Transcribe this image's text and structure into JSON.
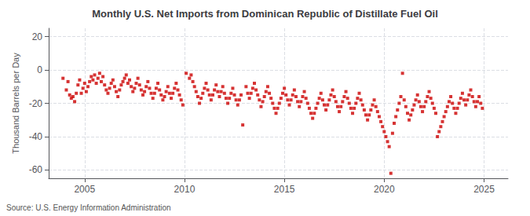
{
  "chart_data": {
    "type": "scatter",
    "title": "Monthly U.S. Net Imports from Dominican Republic of Distillate Fuel Oil",
    "ylabel": "Thousand Barrels per Day",
    "annotation": "Source: U.S. Energy Information Administration",
    "color": "#CC0000",
    "marker": "square",
    "grid": true,
    "xlim": [
      2003.2,
      2026.2
    ],
    "ylim": [
      -65,
      25
    ],
    "xticks": [
      2005,
      2010,
      2015,
      2020,
      2025
    ],
    "yticks": [
      -60,
      -40,
      -20,
      0,
      20
    ],
    "x": [
      2003.917,
      2004.083,
      2004.167,
      2004.25,
      2004.333,
      2004.417,
      2004.5,
      2004.583,
      2004.667,
      2004.75,
      2004.833,
      2004.917,
      2005.0,
      2005.083,
      2005.167,
      2005.25,
      2005.333,
      2005.417,
      2005.5,
      2005.583,
      2005.667,
      2005.75,
      2005.833,
      2005.917,
      2006.0,
      2006.083,
      2006.167,
      2006.25,
      2006.333,
      2006.417,
      2006.5,
      2006.583,
      2006.667,
      2006.75,
      2006.833,
      2006.917,
      2007.0,
      2007.083,
      2007.167,
      2007.25,
      2007.333,
      2007.417,
      2007.5,
      2007.583,
      2007.667,
      2007.75,
      2007.833,
      2007.917,
      2008.0,
      2008.083,
      2008.167,
      2008.25,
      2008.333,
      2008.417,
      2008.5,
      2008.583,
      2008.667,
      2008.75,
      2008.833,
      2008.917,
      2009.0,
      2009.083,
      2009.167,
      2009.25,
      2009.333,
      2009.417,
      2009.5,
      2009.583,
      2009.667,
      2009.75,
      2009.833,
      2009.917,
      2010.083,
      2010.25,
      2010.333,
      2010.417,
      2010.5,
      2010.583,
      2010.667,
      2010.75,
      2010.833,
      2010.917,
      2011.0,
      2011.083,
      2011.167,
      2011.25,
      2011.333,
      2011.417,
      2011.5,
      2011.583,
      2011.667,
      2011.75,
      2011.833,
      2011.917,
      2012.0,
      2012.083,
      2012.167,
      2012.25,
      2012.333,
      2012.417,
      2012.5,
      2012.583,
      2012.667,
      2012.75,
      2012.833,
      2012.917,
      2013.083,
      2013.167,
      2013.25,
      2013.333,
      2013.417,
      2013.5,
      2013.583,
      2013.667,
      2013.75,
      2013.833,
      2013.917,
      2014.0,
      2014.083,
      2014.167,
      2014.25,
      2014.333,
      2014.417,
      2014.5,
      2014.583,
      2014.667,
      2014.75,
      2014.833,
      2014.917,
      2015.0,
      2015.083,
      2015.167,
      2015.25,
      2015.333,
      2015.417,
      2015.5,
      2015.583,
      2015.667,
      2015.75,
      2015.833,
      2015.917,
      2016.0,
      2016.083,
      2016.167,
      2016.25,
      2016.333,
      2016.417,
      2016.5,
      2016.583,
      2016.667,
      2016.75,
      2016.833,
      2016.917,
      2017.0,
      2017.083,
      2017.167,
      2017.25,
      2017.333,
      2017.417,
      2017.5,
      2017.583,
      2017.667,
      2017.75,
      2017.833,
      2017.917,
      2018.0,
      2018.083,
      2018.167,
      2018.25,
      2018.333,
      2018.417,
      2018.5,
      2018.583,
      2018.667,
      2018.75,
      2018.833,
      2018.917,
      2019.0,
      2019.083,
      2019.167,
      2019.25,
      2019.333,
      2019.417,
      2019.5,
      2019.583,
      2019.667,
      2019.75,
      2019.833,
      2019.917,
      2020.0,
      2020.083,
      2020.167,
      2020.25,
      2020.333,
      2020.417,
      2020.5,
      2020.583,
      2020.667,
      2020.75,
      2020.833,
      2020.917,
      2021.0,
      2021.083,
      2021.167,
      2021.25,
      2021.333,
      2021.417,
      2021.5,
      2021.583,
      2021.667,
      2021.75,
      2021.833,
      2021.917,
      2022.0,
      2022.083,
      2022.167,
      2022.25,
      2022.333,
      2022.417,
      2022.5,
      2022.583,
      2022.667,
      2022.75,
      2022.833,
      2022.917,
      2023.0,
      2023.083,
      2023.167,
      2023.25,
      2023.333,
      2023.417,
      2023.5,
      2023.583,
      2023.667,
      2023.75,
      2023.833,
      2023.917,
      2024.0,
      2024.083,
      2024.167,
      2024.25,
      2024.333,
      2024.417,
      2024.5,
      2024.583,
      2024.667,
      2024.75,
      2024.833,
      2024.917
    ],
    "values": [
      -5,
      -12,
      -7,
      -15,
      -17,
      -16,
      -19,
      -14,
      -9,
      -6,
      -14,
      -11,
      -8,
      -13,
      -10,
      -7,
      -4,
      -6,
      -3,
      -8,
      -5,
      -2,
      -7,
      -4,
      -9,
      -12,
      -14,
      -11,
      -8,
      -6,
      -10,
      -13,
      -16,
      -12,
      -9,
      -7,
      -5,
      -3,
      -8,
      -6,
      -10,
      -13,
      -11,
      -8,
      -5,
      -9,
      -12,
      -15,
      -13,
      -10,
      -7,
      -11,
      -14,
      -17,
      -14,
      -11,
      -8,
      -12,
      -15,
      -18,
      -16,
      -13,
      -10,
      -14,
      -17,
      -14,
      -11,
      -8,
      -12,
      -15,
      -18,
      -21,
      -2,
      -5,
      -3,
      -7,
      -10,
      -13,
      -16,
      -20,
      -17,
      -14,
      -11,
      -8,
      -12,
      -15,
      -18,
      -15,
      -12,
      -9,
      -13,
      -16,
      -13,
      -10,
      -14,
      -17,
      -20,
      -17,
      -14,
      -11,
      -15,
      -18,
      -21,
      -18,
      -15,
      -33,
      -10,
      -14,
      -17,
      -14,
      -11,
      -8,
      -12,
      -15,
      -18,
      -22,
      -19,
      -16,
      -13,
      -10,
      -14,
      -17,
      -20,
      -23,
      -26,
      -23,
      -20,
      -17,
      -14,
      -11,
      -15,
      -18,
      -21,
      -18,
      -15,
      -12,
      -16,
      -19,
      -22,
      -19,
      -16,
      -13,
      -17,
      -20,
      -23,
      -26,
      -29,
      -26,
      -23,
      -20,
      -17,
      -14,
      -18,
      -21,
      -24,
      -21,
      -18,
      -15,
      -12,
      -16,
      -19,
      -22,
      -25,
      -22,
      -19,
      -16,
      -13,
      -17,
      -20,
      -23,
      -26,
      -23,
      -20,
      -17,
      -14,
      -18,
      -21,
      -24,
      -27,
      -30,
      -27,
      -24,
      -21,
      -18,
      -22,
      -25,
      -28,
      -31,
      -34,
      -37,
      -40,
      -43,
      -46,
      -62,
      -38,
      -32,
      -28,
      -24,
      -20,
      -16,
      -2,
      -18,
      -22,
      -26,
      -30,
      -27,
      -24,
      -21,
      -18,
      -15,
      -19,
      -22,
      -25,
      -22,
      -19,
      -16,
      -13,
      -17,
      -20,
      -23,
      -26,
      -40,
      -37,
      -34,
      -31,
      -28,
      -25,
      -22,
      -19,
      -16,
      -20,
      -23,
      -26,
      -23,
      -20,
      -17,
      -14,
      -18,
      -21,
      -18,
      -15,
      -12,
      -16,
      -19,
      -22,
      -19,
      -16,
      -20,
      -23
    ]
  }
}
